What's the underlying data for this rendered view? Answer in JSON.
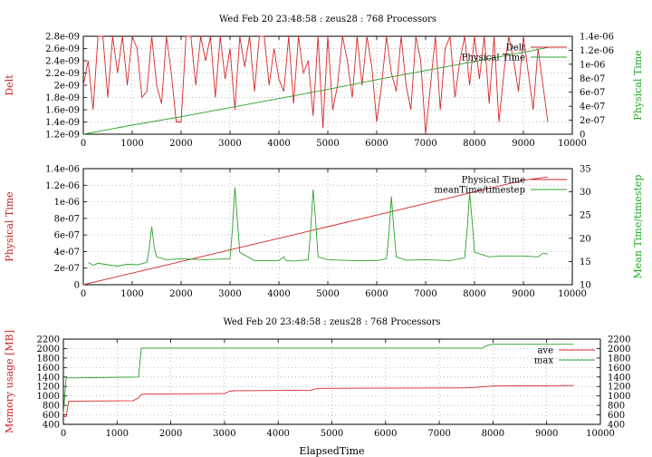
{
  "chart_data": [
    {
      "type": "line",
      "title": "Wed Feb 20 23:48:58 : zeus28 : 768 Processors",
      "ylabel": "Delt",
      "y2label": "Physical Time",
      "xlabel": "",
      "xlim": [
        0,
        10000
      ],
      "ylim": [
        1.2e-09,
        2.8e-09
      ],
      "y2lim": [
        0,
        1.4e-06
      ],
      "grid": true,
      "legend_position": "top-right",
      "x_ticks": [
        "0",
        "1000",
        "2000",
        "3000",
        "4000",
        "5000",
        "6000",
        "7000",
        "8000",
        "9000",
        "10000"
      ],
      "y_ticks": [
        "1.2e-09",
        "1.4e-09",
        "1.6e-09",
        "1.8e-09",
        "2e-09",
        "2.2e-09",
        "2.4e-09",
        "2.6e-09",
        "2.8e-09"
      ],
      "y2_ticks": [
        "0",
        "2e-07",
        "4e-07",
        "6e-07",
        "8e-07",
        "1e-06",
        "1.2e-06",
        "1.4e-06"
      ],
      "series": [
        {
          "name": "Delt",
          "axis": "y1",
          "color": "#d62728",
          "x": [
            0,
            100,
            200,
            300,
            400,
            500,
            600,
            700,
            800,
            900,
            1000,
            1100,
            1200,
            1300,
            1400,
            1500,
            1600,
            1700,
            1800,
            1900,
            2000,
            2100,
            2200,
            2300,
            2400,
            2500,
            2600,
            2700,
            2800,
            2900,
            3000,
            3100,
            3200,
            3300,
            3400,
            3500,
            3600,
            3700,
            3800,
            3900,
            4000,
            4100,
            4200,
            4300,
            4400,
            4500,
            4600,
            4700,
            4800,
            4900,
            5000,
            5100,
            5200,
            5300,
            5400,
            5500,
            5600,
            5700,
            5800,
            5900,
            6000,
            6100,
            6200,
            6300,
            6400,
            6500,
            6600,
            6700,
            6800,
            6900,
            7000,
            7100,
            7200,
            7300,
            7400,
            7500,
            7600,
            7700,
            7800,
            7900,
            8000,
            8100,
            8200,
            8300,
            8400,
            8500,
            8600,
            8700,
            8800,
            8900,
            9000,
            9100,
            9200,
            9300,
            9400,
            9500
          ],
          "values": [
            2e-09,
            2.4e-09,
            1.6e-09,
            2.8e-09,
            2.8e-09,
            1.8e-09,
            2.8e-09,
            2.2e-09,
            2.8e-09,
            2e-09,
            2.8e-09,
            2.6e-09,
            1.8e-09,
            1.9e-09,
            2.8e-09,
            2e-09,
            1.7e-09,
            2.8e-09,
            2.2e-09,
            1.4e-09,
            1.4e-09,
            2.8e-09,
            2.8e-09,
            2e-09,
            2.8e-09,
            2.4e-09,
            2.8e-09,
            1.8e-09,
            2.8e-09,
            2.1e-09,
            2.6e-09,
            1.6e-09,
            2.8e-09,
            2.3e-09,
            2.8e-09,
            1.9e-09,
            2.8e-09,
            2.8e-09,
            2e-09,
            2.6e-09,
            2.1e-09,
            1.9e-09,
            2.8e-09,
            1.7e-09,
            2.8e-09,
            2.2e-09,
            2.4e-09,
            1.5e-09,
            2.8e-09,
            1.3e-09,
            2.8e-09,
            1.6e-09,
            2e-09,
            2.8e-09,
            2.4e-09,
            1.8e-09,
            2.8e-09,
            2e-09,
            2.8e-09,
            2.3e-09,
            1.4e-09,
            2e-09,
            2.8e-09,
            2.2e-09,
            1.9e-09,
            2.8e-09,
            2e-09,
            1.6e-09,
            2.8e-09,
            2.4e-09,
            1.2e-09,
            2e-09,
            2.8e-09,
            1.6e-09,
            2.6e-09,
            2.8e-09,
            1.8e-09,
            2.4e-09,
            2.8e-09,
            2e-09,
            2.8e-09,
            2.1e-09,
            2.8e-09,
            1.7e-09,
            2.8e-09,
            1.4e-09,
            2.2e-09,
            2.8e-09,
            2.4e-09,
            1.9e-09,
            2.8e-09,
            2.2e-09,
            1.6e-09,
            2.6e-09,
            2e-09,
            1.4e-09
          ]
        },
        {
          "name": "Physical Time",
          "axis": "y2",
          "color": "#2ca02c",
          "x": [
            0,
            1000,
            2000,
            3000,
            4000,
            5000,
            6000,
            7000,
            8000,
            9000,
            9500
          ],
          "values": [
            0,
            1.3e-07,
            2.5e-07,
            3.8e-07,
            5.1e-07,
            6.4e-07,
            7.8e-07,
            9.1e-07,
            1.04e-06,
            1.17e-06,
            1.24e-06
          ]
        }
      ]
    },
    {
      "type": "line",
      "title": "",
      "ylabel": "Physical Time",
      "y2label": "Mean Time/timestep",
      "xlabel": "",
      "xlim": [
        0,
        10000
      ],
      "ylim": [
        0,
        1.4e-06
      ],
      "y2lim": [
        10,
        35
      ],
      "grid": true,
      "legend_position": "top-right",
      "x_ticks": [
        "0",
        "1000",
        "2000",
        "3000",
        "4000",
        "5000",
        "6000",
        "7000",
        "8000",
        "9000",
        "10000"
      ],
      "y_ticks": [
        "0",
        "2e-07",
        "4e-07",
        "6e-07",
        "8e-07",
        "1e-06",
        "1.2e-06",
        "1.4e-06"
      ],
      "y2_ticks": [
        "10",
        "15",
        "20",
        "25",
        "30",
        "35"
      ],
      "series": [
        {
          "name": "Physical Time",
          "axis": "y1",
          "color": "#d62728",
          "x": [
            0,
            1000,
            2000,
            3000,
            4000,
            5000,
            6000,
            7000,
            8000,
            9000,
            9500
          ],
          "values": [
            0,
            1.4e-07,
            2.8e-07,
            4.2e-07,
            5.6e-07,
            7e-07,
            8.4e-07,
            9.8e-07,
            1.12e-06,
            1.26e-06,
            1.3e-06
          ]
        },
        {
          "name": "meanTime/timestep",
          "axis": "y2",
          "color": "#2ca02c",
          "x": [
            100,
            200,
            300,
            500,
            700,
            900,
            1100,
            1300,
            1350,
            1400,
            1450,
            1500,
            1700,
            2000,
            2500,
            3000,
            3050,
            3100,
            3150,
            3200,
            3500,
            4000,
            4100,
            4150,
            4300,
            4600,
            4650,
            4700,
            4750,
            4800,
            5000,
            5500,
            6000,
            6200,
            6250,
            6300,
            6350,
            6400,
            6600,
            7000,
            7500,
            7800,
            7850,
            7900,
            7950,
            8000,
            8300,
            8500,
            9000,
            9300,
            9400,
            9500
          ],
          "values": [
            14.8,
            14.2,
            14.6,
            14.3,
            14.0,
            14.4,
            14.3,
            14.8,
            18,
            22.5,
            18,
            16,
            15.4,
            15.6,
            15.4,
            15.6,
            22,
            31,
            24,
            17,
            15.2,
            15.2,
            16,
            15.2,
            15.1,
            15.4,
            22,
            30.5,
            24,
            16,
            15.4,
            15.2,
            15.2,
            15.6,
            21,
            29,
            22,
            16,
            15.3,
            15.4,
            15.2,
            15.8,
            22,
            29.8,
            24,
            17,
            16,
            16.2,
            16.2,
            16.0,
            16.8,
            16.6
          ]
        }
      ]
    },
    {
      "type": "line",
      "title": "Wed Feb 20 23:48:58 : zeus28 : 768 Processors",
      "ylabel": "Memory usage [MB]",
      "xlabel": "ElapsedTime",
      "xlim": [
        0,
        10000
      ],
      "ylim": [
        400,
        2200
      ],
      "y2lim": [
        400,
        2200
      ],
      "grid": true,
      "legend_position": "top-right",
      "x_ticks": [
        "0",
        "1000",
        "2000",
        "3000",
        "4000",
        "5000",
        "6000",
        "7000",
        "8000",
        "9000",
        "10000"
      ],
      "y_ticks": [
        "400",
        "600",
        "800",
        "1000",
        "1200",
        "1400",
        "1600",
        "1800",
        "2000",
        "2200"
      ],
      "y2_ticks": [
        "400",
        "600",
        "800",
        "1000",
        "1200",
        "1400",
        "1600",
        "1800",
        "2000",
        "2200"
      ],
      "series": [
        {
          "name": "ave",
          "axis": "y1",
          "color": "#d62728",
          "x": [
            0,
            50,
            100,
            1300,
            1400,
            1450,
            1500,
            3000,
            3050,
            3100,
            3200,
            4600,
            4700,
            4750,
            7500,
            7900,
            8000,
            9500
          ],
          "values": [
            560,
            560,
            890,
            900,
            960,
            1030,
            1040,
            1050,
            1080,
            1100,
            1110,
            1120,
            1150,
            1160,
            1170,
            1200,
            1210,
            1220
          ]
        },
        {
          "name": "max",
          "axis": "y1",
          "color": "#2ca02c",
          "x": [
            0,
            50,
            100,
            1400,
            1450,
            1500,
            7800,
            7900,
            8000,
            9500
          ],
          "values": [
            620,
            1380,
            1380,
            1400,
            2010,
            2010,
            2010,
            2070,
            2090,
            2090
          ]
        }
      ]
    }
  ]
}
